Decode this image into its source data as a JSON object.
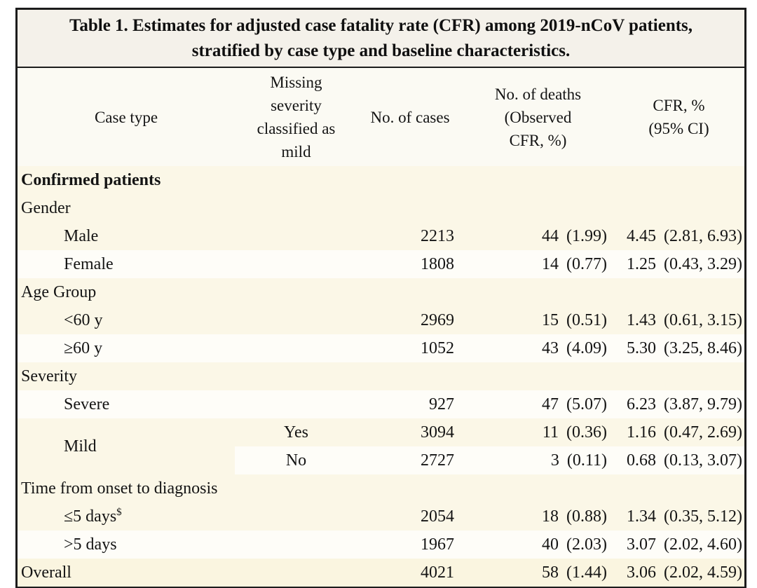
{
  "title": {
    "line1": "Table 1. Estimates for adjusted case fatality rate (CFR) among 2019-nCoV patients,",
    "line2": "stratified by case type and baseline characteristics."
  },
  "columns": [
    {
      "label": "Case type",
      "lines": [
        "Case type"
      ]
    },
    {
      "label": "Missing severity classified as mild",
      "lines": [
        "Missing",
        "severity",
        "classified as",
        "mild"
      ]
    },
    {
      "label": "No. of cases",
      "lines": [
        "No. of cases"
      ]
    },
    {
      "label": "No. of deaths (Observed CFR, %)",
      "lines": [
        "No. of deaths",
        "(Observed",
        "CFR, %)"
      ]
    },
    {
      "label": "CFR, % (95% CI)",
      "lines": [
        "CFR, %",
        "(95% CI)"
      ]
    }
  ],
  "rows": [
    {
      "label": "Confirmed patients"
    },
    {
      "label": "Gender"
    },
    {
      "label": "Male",
      "cases": "2213",
      "deaths": "44",
      "obs": "(1.99)",
      "cfr": "4.45",
      "ci": "(2.81, 6.93)"
    },
    {
      "label": "Female",
      "cases": "1808",
      "deaths": "14",
      "obs": "(0.77)",
      "cfr": "1.25",
      "ci": "(0.43, 3.29)"
    },
    {
      "label": "Age Group"
    },
    {
      "label": "<60 y",
      "cases": "2969",
      "deaths": "15",
      "obs": "(0.51)",
      "cfr": "1.43",
      "ci": "(0.61, 3.15)"
    },
    {
      "label": "≥60 y",
      "cases": "1052",
      "deaths": "43",
      "obs": "(4.09)",
      "cfr": "5.30",
      "ci": "(3.25, 8.46)"
    },
    {
      "label": "Severity"
    },
    {
      "label": "Severe",
      "cases": "927",
      "deaths": "47",
      "obs": "(5.07)",
      "cfr": "6.23",
      "ci": "(3.87, 9.79)"
    },
    {
      "label": "Mild",
      "missing": "Yes",
      "cases": "3094",
      "deaths": "11",
      "obs": "(0.36)",
      "cfr": "1.16",
      "ci": "(0.47, 2.69)"
    },
    {
      "missing": "No",
      "cases": "2727",
      "deaths": "3",
      "obs": "(0.11)",
      "cfr": "0.68",
      "ci": "(0.13, 3.07)"
    },
    {
      "label": "Time from onset to diagnosis"
    },
    {
      "label": "≤5 days",
      "sup": "$",
      "cases": "2054",
      "deaths": "18",
      "obs": "(0.88)",
      "cfr": "1.34",
      "ci": "(0.35, 5.12)"
    },
    {
      "label": ">5 days",
      "cases": "1967",
      "deaths": "40",
      "obs": "(2.03)",
      "cfr": "3.07",
      "ci": "(2.02, 4.60)"
    },
    {
      "label": "Overall",
      "cases": "4021",
      "deaths": "58",
      "obs": "(1.44)",
      "cfr": "3.06",
      "ci": "(2.02, 4.59)"
    }
  ],
  "colors": {
    "border": "#1c1c1c",
    "title_bg": "#f4f1ea",
    "header_bg": "#fbfaf3",
    "row_cream": "#fbf7e7",
    "row_white": "#fefdf8",
    "row_overall": "#faf5e0",
    "text": "#141414"
  }
}
